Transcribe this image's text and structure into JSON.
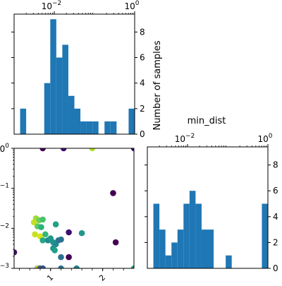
{
  "chart_data": [
    {
      "type": "bar",
      "role": "histogram",
      "panel": "top-left",
      "bins_log10": [
        [
          -3.0,
          -2.85,
          0
        ],
        [
          -2.85,
          -2.7,
          2
        ],
        [
          -2.7,
          -2.55,
          0
        ],
        [
          -2.55,
          -2.4,
          0
        ],
        [
          -2.4,
          -2.25,
          0
        ],
        [
          -2.25,
          -2.1,
          4
        ],
        [
          -2.1,
          -1.95,
          9
        ],
        [
          -1.95,
          -1.8,
          6
        ],
        [
          -1.8,
          -1.65,
          7
        ],
        [
          -1.65,
          -1.5,
          3
        ],
        [
          -1.5,
          -1.35,
          2
        ],
        [
          -1.35,
          -1.2,
          1
        ],
        [
          -1.2,
          -1.05,
          1
        ],
        [
          -1.05,
          -0.9,
          1
        ],
        [
          -0.9,
          -0.75,
          0
        ],
        [
          -0.75,
          -0.6,
          1
        ],
        [
          -0.6,
          -0.45,
          1
        ],
        [
          -0.45,
          -0.3,
          0
        ],
        [
          -0.3,
          -0.15,
          0
        ],
        [
          -0.15,
          0.0,
          2
        ]
      ],
      "xscale": "log",
      "xlim_log10": [
        -3.0,
        0.0
      ],
      "ylim": [
        0,
        9.4
      ],
      "right_ticks": [
        "0",
        "2",
        "4",
        "6",
        "8"
      ],
      "right_tick_values": [
        0,
        2,
        4,
        6,
        8
      ],
      "left_tick_values": [
        2,
        4,
        6,
        8
      ],
      "top_tick_labels": [
        {
          "text": "10",
          "sup": "−2",
          "log10": -2
        },
        {
          "text": "10",
          "sup": "0",
          "log10": 0
        }
      ],
      "ylabel": "Number of samples"
    },
    {
      "type": "scatter",
      "panel": "bottom-left",
      "xlim": [
        0.3,
        2.6
      ],
      "ylim_log10": [
        -3.0,
        0.0
      ],
      "left_tick_labels": [
        {
          "text": "10",
          "sup": "0",
          "log10": 0
        },
        {
          "text": "10",
          "sup": "−1",
          "log10": -1
        },
        {
          "text": "10",
          "sup": "−2",
          "log10": -2
        },
        {
          "text": "10",
          "sup": "−3",
          "log10": -3
        }
      ],
      "bottom_tick_labels": [
        {
          "text": "1",
          "value": 1
        },
        {
          "text": "2",
          "value": 2
        }
      ],
      "points": [
        {
          "x": 0.3,
          "y_log10": -2.6,
          "color": "#3b0f70"
        },
        {
          "x": 0.75,
          "y_log10": -3.0,
          "color": "#2a788e"
        },
        {
          "x": 0.76,
          "y_log10": -3.0,
          "color": "#fde725"
        },
        {
          "x": 0.77,
          "y_log10": -3.0,
          "color": "#e8c116"
        },
        {
          "x": 0.78,
          "y_log10": -3.0,
          "color": "#d2c81a"
        },
        {
          "x": 0.8,
          "y_log10": -3.0,
          "color": "#31688e"
        },
        {
          "x": 0.85,
          "y_log10": -3.0,
          "color": "#3b528b"
        },
        {
          "x": 1.2,
          "y_log10": -3.0,
          "color": "#2c728e"
        },
        {
          "x": 1.5,
          "y_log10": -3.0,
          "color": "#26828e"
        },
        {
          "x": 2.6,
          "y_log10": -3.0,
          "color": "#1f9e89"
        },
        {
          "x": 0.85,
          "y_log10": 0.0,
          "color": "#440154"
        },
        {
          "x": 1.25,
          "y_log10": 0.0,
          "color": "#3b0f70"
        },
        {
          "x": 1.8,
          "y_log10": 0.0,
          "color": "#b5de2b"
        },
        {
          "x": 2.6,
          "y_log10": 0.0,
          "color": "#3b0f70"
        },
        {
          "x": 2.2,
          "y_log10": -1.12,
          "color": "#440154"
        },
        {
          "x": 2.25,
          "y_log10": -2.35,
          "color": "#440154"
        },
        {
          "x": 0.72,
          "y_log10": -1.75,
          "color": "#9fda3a"
        },
        {
          "x": 0.78,
          "y_log10": -1.8,
          "color": "#6ece58"
        },
        {
          "x": 0.85,
          "y_log10": -1.78,
          "color": "#4ac16d"
        },
        {
          "x": 0.68,
          "y_log10": -1.85,
          "color": "#c2df23"
        },
        {
          "x": 0.75,
          "y_log10": -1.95,
          "color": "#5ec962"
        },
        {
          "x": 0.82,
          "y_log10": -1.97,
          "color": "#2db27d"
        },
        {
          "x": 1.1,
          "y_log10": -1.9,
          "color": "#1fa187"
        },
        {
          "x": 0.7,
          "y_log10": -2.15,
          "color": "#c8e020"
        },
        {
          "x": 0.8,
          "y_log10": -2.2,
          "color": "#d8e219"
        },
        {
          "x": 0.9,
          "y_log10": -2.15,
          "color": "#35b779"
        },
        {
          "x": 0.85,
          "y_log10": -2.3,
          "color": "#22a884"
        },
        {
          "x": 0.95,
          "y_log10": -2.3,
          "color": "#25858e"
        },
        {
          "x": 1.0,
          "y_log10": -2.25,
          "color": "#1f988b"
        },
        {
          "x": 1.05,
          "y_log10": -2.35,
          "color": "#20928c"
        },
        {
          "x": 1.1,
          "y_log10": -2.4,
          "color": "#23898e"
        },
        {
          "x": 1.15,
          "y_log10": -2.3,
          "color": "#2a788e"
        },
        {
          "x": 1.2,
          "y_log10": -2.28,
          "color": "#2c728e"
        },
        {
          "x": 1.35,
          "y_log10": -2.1,
          "color": "#3b0f70"
        },
        {
          "x": 1.6,
          "y_log10": -2.12,
          "color": "#1f988b"
        },
        {
          "x": 1.05,
          "y_log10": -2.5,
          "color": "#21918c"
        },
        {
          "x": 1.08,
          "y_log10": -2.55,
          "color": "#1fa187"
        },
        {
          "x": 1.2,
          "y_log10": -2.72,
          "color": "#2c728e"
        },
        {
          "x": 1.35,
          "y_log10": -2.72,
          "color": "#440154"
        }
      ]
    },
    {
      "type": "bar",
      "role": "histogram",
      "panel": "bottom-right",
      "title": "min_dist",
      "bins_log10": [
        [
          -3.0,
          -2.85,
          0
        ],
        [
          -2.85,
          -2.7,
          5
        ],
        [
          -2.7,
          -2.55,
          3
        ],
        [
          -2.55,
          -2.4,
          1
        ],
        [
          -2.4,
          -2.25,
          2
        ],
        [
          -2.25,
          -2.1,
          3
        ],
        [
          -2.1,
          -1.95,
          5
        ],
        [
          -1.95,
          -1.8,
          6
        ],
        [
          -1.8,
          -1.65,
          5
        ],
        [
          -1.65,
          -1.5,
          3
        ],
        [
          -1.5,
          -1.35,
          3
        ],
        [
          -1.35,
          -1.2,
          0
        ],
        [
          -1.2,
          -1.05,
          0
        ],
        [
          -1.05,
          -0.9,
          1
        ],
        [
          -0.9,
          -0.75,
          0
        ],
        [
          -0.75,
          -0.6,
          0
        ],
        [
          -0.6,
          -0.45,
          0
        ],
        [
          -0.45,
          -0.3,
          0
        ],
        [
          -0.3,
          -0.15,
          0
        ],
        [
          -0.15,
          0.0,
          5
        ]
      ],
      "xscale": "log",
      "xlim_log10": [
        -3.0,
        0.0
      ],
      "ylim": [
        0,
        9.4
      ],
      "right_ticks": [
        "0",
        "2",
        "4",
        "6",
        "8"
      ],
      "right_tick_values": [
        0,
        2,
        4,
        6,
        8
      ],
      "left_tick_values": [
        2,
        4,
        6,
        8
      ],
      "top_tick_labels": [
        {
          "text": "10",
          "sup": "−2",
          "log10": -2
        },
        {
          "text": "10",
          "sup": "0",
          "log10": 0
        }
      ]
    }
  ],
  "colors": {
    "bar_fill": "#1f77b4",
    "axis": "#000000",
    "background": "#ffffff"
  }
}
